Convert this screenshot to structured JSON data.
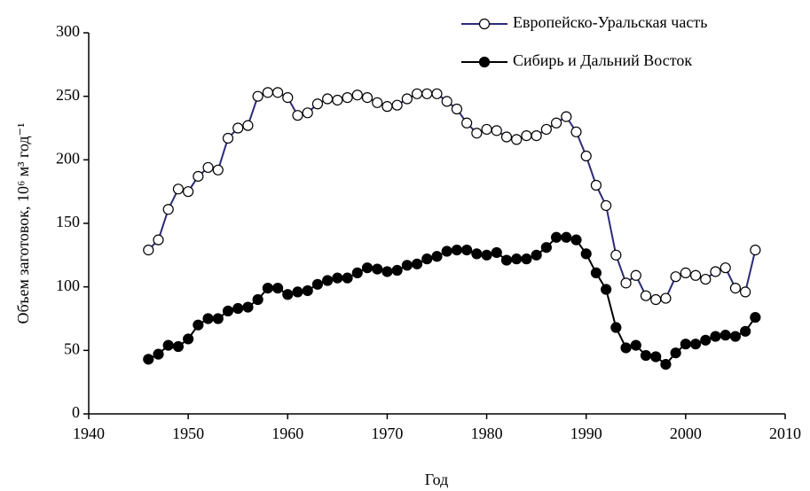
{
  "chart_data": {
    "type": "line",
    "x_label": "Год",
    "y_label": "Объем заготовок, 10⁶ м³ год⁻¹",
    "x": [
      1946,
      1947,
      1948,
      1949,
      1950,
      1951,
      1952,
      1953,
      1954,
      1955,
      1956,
      1957,
      1958,
      1959,
      1960,
      1961,
      1962,
      1963,
      1964,
      1965,
      1966,
      1967,
      1968,
      1969,
      1970,
      1971,
      1972,
      1973,
      1974,
      1975,
      1976,
      1977,
      1978,
      1979,
      1980,
      1981,
      1982,
      1983,
      1984,
      1985,
      1986,
      1987,
      1988,
      1989,
      1990,
      1991,
      1992,
      1993,
      1994,
      1995,
      1996,
      1997,
      1998,
      1999,
      2000,
      2001,
      2002,
      2003,
      2004,
      2005,
      2006,
      2007
    ],
    "series": [
      {
        "name": "Европейско-Уральская часть",
        "color": "#2b2b78",
        "marker_fill": "#ffffff",
        "values": [
          129,
          137,
          161,
          177,
          175,
          187,
          194,
          192,
          217,
          225,
          227,
          250,
          253,
          253,
          249,
          235,
          237,
          244,
          248,
          247,
          249,
          251,
          249,
          245,
          242,
          243,
          248,
          252,
          252,
          252,
          246,
          240,
          229,
          221,
          224,
          223,
          218,
          216,
          219,
          219,
          224,
          229,
          234,
          222,
          203,
          180,
          164,
          125,
          103,
          109,
          93,
          90,
          91,
          108,
          111,
          109,
          106,
          112,
          115,
          99,
          96,
          129
        ]
      },
      {
        "name": "Сибирь и Дальний Восток",
        "color": "#000000",
        "marker_fill": "#000000",
        "values": [
          43,
          47,
          54,
          53,
          59,
          70,
          75,
          75,
          81,
          83,
          84,
          90,
          99,
          99,
          94,
          96,
          97,
          102,
          105,
          107,
          107,
          111,
          115,
          114,
          112,
          113,
          117,
          118,
          122,
          124,
          128,
          129,
          129,
          126,
          125,
          127,
          121,
          122,
          122,
          125,
          131,
          139,
          139,
          137,
          126,
          111,
          98,
          68,
          52,
          54,
          46,
          45,
          39,
          48,
          55,
          55,
          58,
          61,
          62,
          61,
          65,
          76
        ]
      }
    ],
    "xlim": [
      1940,
      2010
    ],
    "xticks": [
      1940,
      1950,
      1960,
      1970,
      1980,
      1990,
      2000,
      2010
    ],
    "ylim": [
      0,
      300
    ],
    "yticks": [
      0,
      50,
      100,
      150,
      200,
      250,
      300
    ],
    "grid": false,
    "legend": "top-right"
  }
}
